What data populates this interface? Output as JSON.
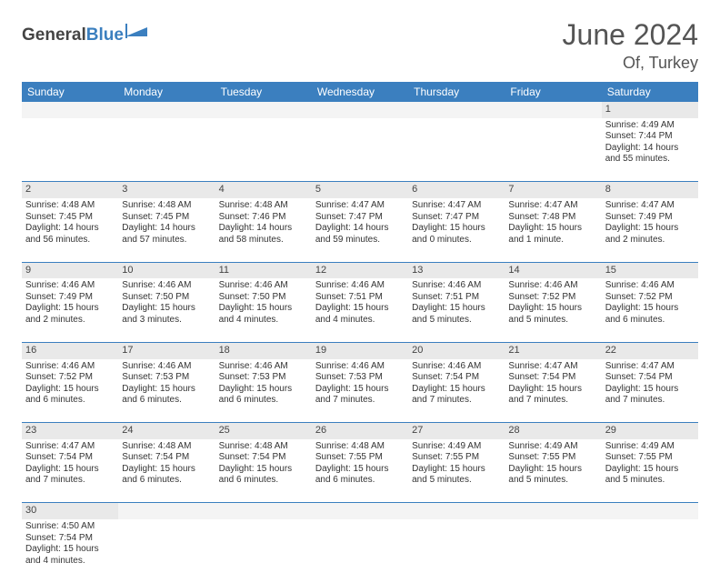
{
  "brand": {
    "part1": "General",
    "part2": "Blue"
  },
  "title": "June 2024",
  "location": "Of, Turkey",
  "colors": {
    "header_bg": "#3b7fbf",
    "header_text": "#ffffff",
    "daynum_bg": "#e9e9e9",
    "cell_border": "#3b7fbf",
    "body_text": "#333333",
    "brand_accent": "#3b7fbf"
  },
  "weekdays": [
    "Sunday",
    "Monday",
    "Tuesday",
    "Wednesday",
    "Thursday",
    "Friday",
    "Saturday"
  ],
  "weeks": [
    {
      "nums": [
        "",
        "",
        "",
        "",
        "",
        "",
        "1"
      ],
      "cells": [
        null,
        null,
        null,
        null,
        null,
        null,
        {
          "sr": "Sunrise: 4:49 AM",
          "ss": "Sunset: 7:44 PM",
          "d1": "Daylight: 14 hours",
          "d2": "and 55 minutes."
        }
      ]
    },
    {
      "nums": [
        "2",
        "3",
        "4",
        "5",
        "6",
        "7",
        "8"
      ],
      "cells": [
        {
          "sr": "Sunrise: 4:48 AM",
          "ss": "Sunset: 7:45 PM",
          "d1": "Daylight: 14 hours",
          "d2": "and 56 minutes."
        },
        {
          "sr": "Sunrise: 4:48 AM",
          "ss": "Sunset: 7:45 PM",
          "d1": "Daylight: 14 hours",
          "d2": "and 57 minutes."
        },
        {
          "sr": "Sunrise: 4:48 AM",
          "ss": "Sunset: 7:46 PM",
          "d1": "Daylight: 14 hours",
          "d2": "and 58 minutes."
        },
        {
          "sr": "Sunrise: 4:47 AM",
          "ss": "Sunset: 7:47 PM",
          "d1": "Daylight: 14 hours",
          "d2": "and 59 minutes."
        },
        {
          "sr": "Sunrise: 4:47 AM",
          "ss": "Sunset: 7:47 PM",
          "d1": "Daylight: 15 hours",
          "d2": "and 0 minutes."
        },
        {
          "sr": "Sunrise: 4:47 AM",
          "ss": "Sunset: 7:48 PM",
          "d1": "Daylight: 15 hours",
          "d2": "and 1 minute."
        },
        {
          "sr": "Sunrise: 4:47 AM",
          "ss": "Sunset: 7:49 PM",
          "d1": "Daylight: 15 hours",
          "d2": "and 2 minutes."
        }
      ]
    },
    {
      "nums": [
        "9",
        "10",
        "11",
        "12",
        "13",
        "14",
        "15"
      ],
      "cells": [
        {
          "sr": "Sunrise: 4:46 AM",
          "ss": "Sunset: 7:49 PM",
          "d1": "Daylight: 15 hours",
          "d2": "and 2 minutes."
        },
        {
          "sr": "Sunrise: 4:46 AM",
          "ss": "Sunset: 7:50 PM",
          "d1": "Daylight: 15 hours",
          "d2": "and 3 minutes."
        },
        {
          "sr": "Sunrise: 4:46 AM",
          "ss": "Sunset: 7:50 PM",
          "d1": "Daylight: 15 hours",
          "d2": "and 4 minutes."
        },
        {
          "sr": "Sunrise: 4:46 AM",
          "ss": "Sunset: 7:51 PM",
          "d1": "Daylight: 15 hours",
          "d2": "and 4 minutes."
        },
        {
          "sr": "Sunrise: 4:46 AM",
          "ss": "Sunset: 7:51 PM",
          "d1": "Daylight: 15 hours",
          "d2": "and 5 minutes."
        },
        {
          "sr": "Sunrise: 4:46 AM",
          "ss": "Sunset: 7:52 PM",
          "d1": "Daylight: 15 hours",
          "d2": "and 5 minutes."
        },
        {
          "sr": "Sunrise: 4:46 AM",
          "ss": "Sunset: 7:52 PM",
          "d1": "Daylight: 15 hours",
          "d2": "and 6 minutes."
        }
      ]
    },
    {
      "nums": [
        "16",
        "17",
        "18",
        "19",
        "20",
        "21",
        "22"
      ],
      "cells": [
        {
          "sr": "Sunrise: 4:46 AM",
          "ss": "Sunset: 7:52 PM",
          "d1": "Daylight: 15 hours",
          "d2": "and 6 minutes."
        },
        {
          "sr": "Sunrise: 4:46 AM",
          "ss": "Sunset: 7:53 PM",
          "d1": "Daylight: 15 hours",
          "d2": "and 6 minutes."
        },
        {
          "sr": "Sunrise: 4:46 AM",
          "ss": "Sunset: 7:53 PM",
          "d1": "Daylight: 15 hours",
          "d2": "and 6 minutes."
        },
        {
          "sr": "Sunrise: 4:46 AM",
          "ss": "Sunset: 7:53 PM",
          "d1": "Daylight: 15 hours",
          "d2": "and 7 minutes."
        },
        {
          "sr": "Sunrise: 4:46 AM",
          "ss": "Sunset: 7:54 PM",
          "d1": "Daylight: 15 hours",
          "d2": "and 7 minutes."
        },
        {
          "sr": "Sunrise: 4:47 AM",
          "ss": "Sunset: 7:54 PM",
          "d1": "Daylight: 15 hours",
          "d2": "and 7 minutes."
        },
        {
          "sr": "Sunrise: 4:47 AM",
          "ss": "Sunset: 7:54 PM",
          "d1": "Daylight: 15 hours",
          "d2": "and 7 minutes."
        }
      ]
    },
    {
      "nums": [
        "23",
        "24",
        "25",
        "26",
        "27",
        "28",
        "29"
      ],
      "cells": [
        {
          "sr": "Sunrise: 4:47 AM",
          "ss": "Sunset: 7:54 PM",
          "d1": "Daylight: 15 hours",
          "d2": "and 7 minutes."
        },
        {
          "sr": "Sunrise: 4:48 AM",
          "ss": "Sunset: 7:54 PM",
          "d1": "Daylight: 15 hours",
          "d2": "and 6 minutes."
        },
        {
          "sr": "Sunrise: 4:48 AM",
          "ss": "Sunset: 7:54 PM",
          "d1": "Daylight: 15 hours",
          "d2": "and 6 minutes."
        },
        {
          "sr": "Sunrise: 4:48 AM",
          "ss": "Sunset: 7:55 PM",
          "d1": "Daylight: 15 hours",
          "d2": "and 6 minutes."
        },
        {
          "sr": "Sunrise: 4:49 AM",
          "ss": "Sunset: 7:55 PM",
          "d1": "Daylight: 15 hours",
          "d2": "and 5 minutes."
        },
        {
          "sr": "Sunrise: 4:49 AM",
          "ss": "Sunset: 7:55 PM",
          "d1": "Daylight: 15 hours",
          "d2": "and 5 minutes."
        },
        {
          "sr": "Sunrise: 4:49 AM",
          "ss": "Sunset: 7:55 PM",
          "d1": "Daylight: 15 hours",
          "d2": "and 5 minutes."
        }
      ]
    },
    {
      "nums": [
        "30",
        "",
        "",
        "",
        "",
        "",
        ""
      ],
      "cells": [
        {
          "sr": "Sunrise: 4:50 AM",
          "ss": "Sunset: 7:54 PM",
          "d1": "Daylight: 15 hours",
          "d2": "and 4 minutes."
        },
        null,
        null,
        null,
        null,
        null,
        null
      ]
    }
  ]
}
